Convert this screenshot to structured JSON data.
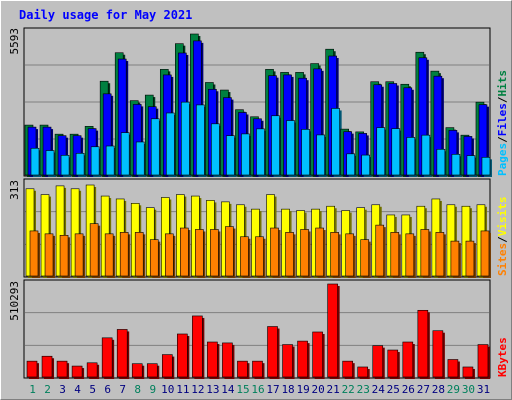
{
  "title": "Daily usage for May 2021",
  "colors": {
    "hits": "#008040",
    "files": "#0000ff",
    "pages": "#00c0ff",
    "visits": "#ffff00",
    "sites": "#ff8000",
    "kbytes": "#ff0000",
    "title": "#0000ff",
    "weekend_day": "#00805c",
    "weekday": "#000080"
  },
  "chart_data": [
    {
      "type": "bar",
      "panel": "top",
      "max_label": "5593",
      "legend": {
        "pages": "Pages",
        "files": "Files",
        "hits": "Hits",
        "sep1": "/",
        "sep2": "/"
      },
      "categories": [
        "1",
        "2",
        "3",
        "4",
        "5",
        "6",
        "7",
        "8",
        "9",
        "10",
        "11",
        "12",
        "13",
        "14",
        "15",
        "16",
        "17",
        "18",
        "19",
        "20",
        "21",
        "22",
        "23",
        "24",
        "25",
        "26",
        "27",
        "28",
        "29",
        "30",
        "31"
      ],
      "weekend": [
        1,
        2,
        8,
        9,
        15,
        16,
        22,
        23,
        29,
        30
      ],
      "series": [
        {
          "name": "Hits",
          "values": [
            1980,
            1980,
            1620,
            1620,
            1930,
            3720,
            4850,
            2950,
            3170,
            4190,
            5210,
            5593,
            3670,
            3370,
            2590,
            2310,
            4190,
            4070,
            4070,
            4420,
            4990,
            1820,
            1710,
            3700,
            3700,
            3600,
            4870,
            4120,
            1880,
            1580,
            2890
          ]
        },
        {
          "name": "Files",
          "values": [
            1900,
            1900,
            1560,
            1560,
            1840,
            3220,
            4600,
            2800,
            2710,
            3970,
            4840,
            5320,
            3400,
            3070,
            2480,
            2230,
            3940,
            3970,
            3840,
            4210,
            4720,
            1720,
            1650,
            3580,
            3630,
            3460,
            4650,
            3920,
            1770,
            1530,
            2790
          ]
        },
        {
          "name": "Pages",
          "values": [
            1060,
            970,
            780,
            860,
            1120,
            1150,
            1680,
            1310,
            2230,
            2460,
            2890,
            2780,
            2030,
            1560,
            1630,
            1830,
            2350,
            2160,
            1810,
            1590,
            2640,
            840,
            790,
            1880,
            1840,
            1490,
            1580,
            1020,
            820,
            770,
            700
          ]
        }
      ]
    },
    {
      "type": "bar",
      "panel": "middle",
      "max_label": "313",
      "legend": {
        "sites": "Sites",
        "visits": "Visits",
        "sep": "/"
      },
      "categories": [
        "1",
        "2",
        "3",
        "4",
        "5",
        "6",
        "7",
        "8",
        "9",
        "10",
        "11",
        "12",
        "13",
        "14",
        "15",
        "16",
        "17",
        "18",
        "19",
        "20",
        "21",
        "22",
        "23",
        "24",
        "25",
        "26",
        "27",
        "28",
        "29",
        "30",
        "31"
      ],
      "series": [
        {
          "name": "Visits",
          "values": [
            300,
            280,
            310,
            300,
            313,
            275,
            265,
            250,
            235,
            270,
            280,
            275,
            260,
            255,
            245,
            230,
            280,
            230,
            225,
            230,
            240,
            225,
            235,
            245,
            210,
            210,
            240,
            265,
            245,
            240,
            245
          ]
        },
        {
          "name": "Sites",
          "values": [
            155,
            145,
            140,
            145,
            180,
            145,
            150,
            150,
            125,
            145,
            165,
            160,
            160,
            170,
            135,
            135,
            165,
            150,
            160,
            165,
            150,
            145,
            125,
            175,
            150,
            145,
            160,
            150,
            120,
            120,
            155
          ]
        }
      ]
    },
    {
      "type": "bar",
      "panel": "bottom",
      "max_label": "510293",
      "legend": {
        "kbytes": "KBytes"
      },
      "categories": [
        "1",
        "2",
        "3",
        "4",
        "5",
        "6",
        "7",
        "8",
        "9",
        "10",
        "11",
        "12",
        "13",
        "14",
        "15",
        "16",
        "17",
        "18",
        "19",
        "20",
        "21",
        "22",
        "23",
        "24",
        "25",
        "26",
        "27",
        "28",
        "29",
        "30",
        "31"
      ],
      "series": [
        {
          "name": "KBytes",
          "values": [
            87000,
            114000,
            87000,
            60000,
            78000,
            215000,
            261000,
            73000,
            73000,
            123000,
            236000,
            335000,
            192000,
            187000,
            87000,
            87000,
            277000,
            178000,
            197000,
            247000,
            510293,
            87000,
            55000,
            172000,
            148000,
            192000,
            366000,
            254000,
            96000,
            55000,
            178000
          ]
        }
      ]
    }
  ]
}
